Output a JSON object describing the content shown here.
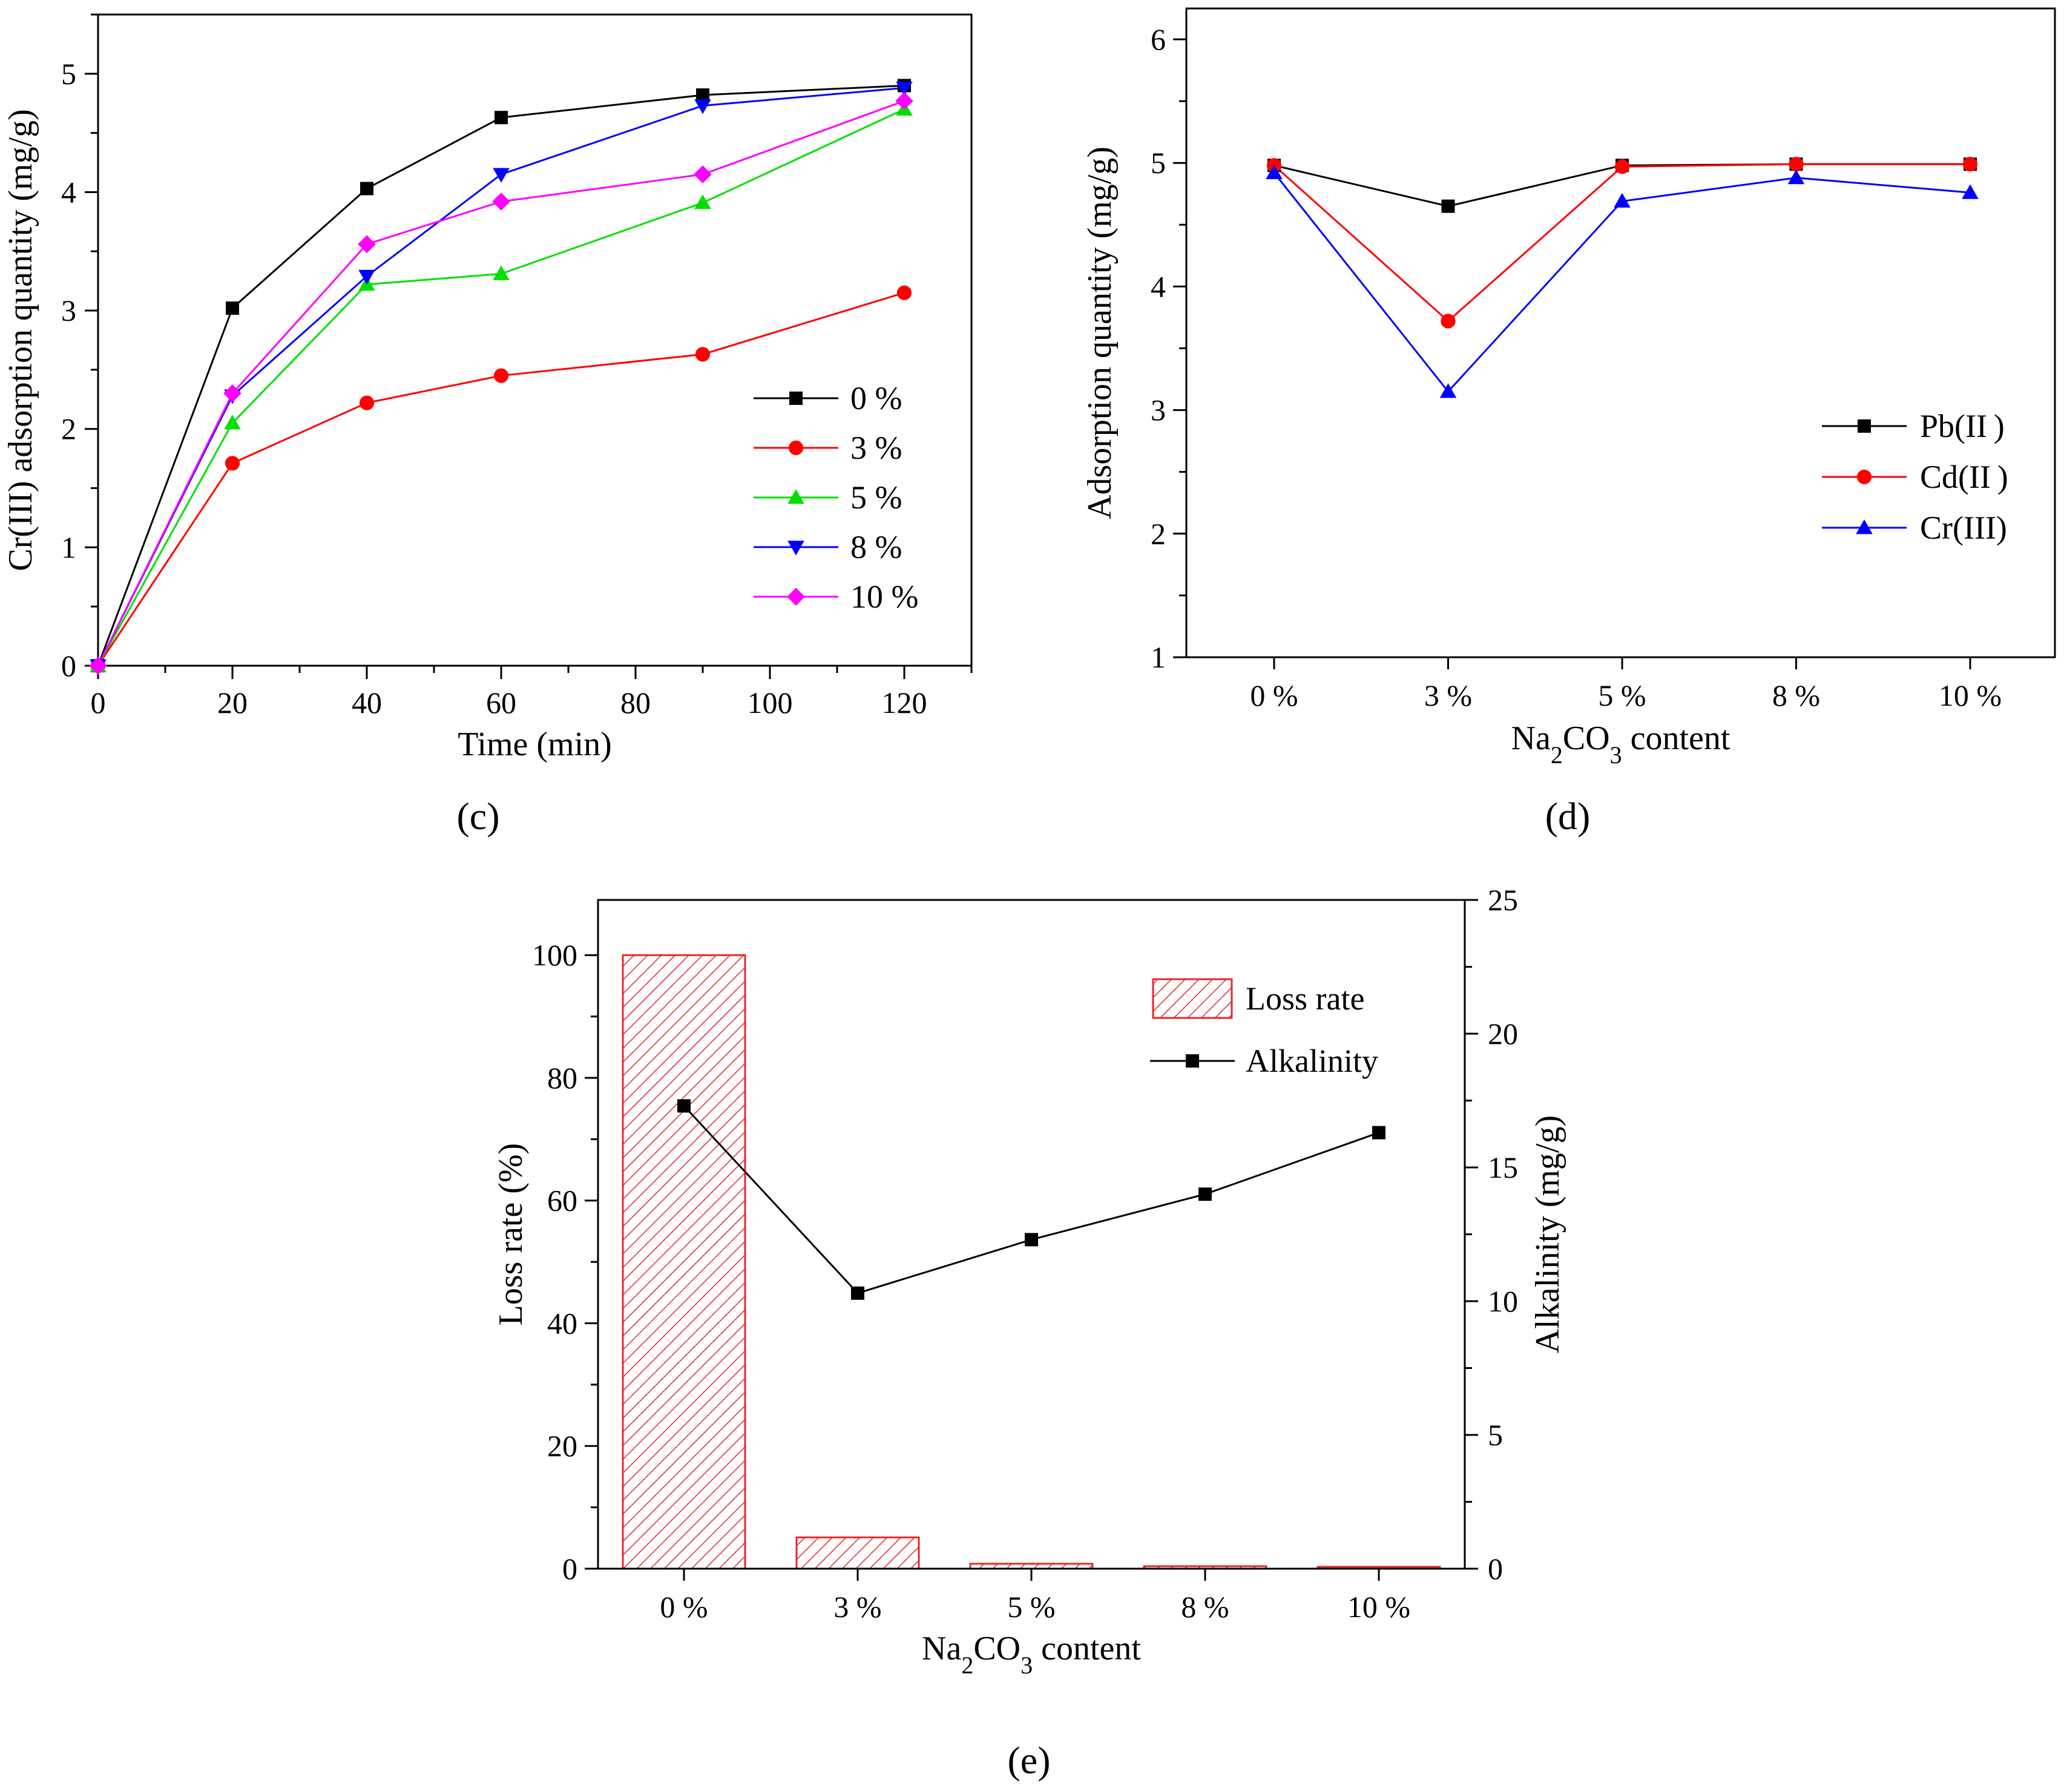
{
  "chart_data": [
    {
      "id": "c",
      "type": "line",
      "panel_label": "c",
      "xlabel": "Time (min)",
      "ylabel": "Cr(III)  adsorption quantity (mg/g)",
      "x": [
        0,
        20,
        40,
        60,
        90,
        120
      ],
      "xlim": [
        0,
        130
      ],
      "ylim": [
        0,
        5.5
      ],
      "xticks": [
        0,
        20,
        40,
        60,
        80,
        100,
        120
      ],
      "yticks": [
        0,
        1,
        2,
        3,
        4,
        5
      ],
      "legend_position": "center-right",
      "series": [
        {
          "name": "0 %",
          "color": "#000000",
          "marker": "square",
          "values": [
            0,
            3.02,
            4.03,
            4.63,
            4.82,
            4.9
          ]
        },
        {
          "name": "3 %",
          "color": "#ff0000",
          "marker": "circle",
          "values": [
            0,
            1.71,
            2.22,
            2.45,
            2.63,
            3.15
          ]
        },
        {
          "name": "5 %",
          "color": "#00e000",
          "marker": "triangle-up",
          "values": [
            0,
            2.05,
            3.22,
            3.31,
            3.91,
            4.7
          ]
        },
        {
          "name": "8 %",
          "color": "#0000ff",
          "marker": "triangle-down",
          "values": [
            0,
            2.28,
            3.29,
            4.15,
            4.73,
            4.88
          ]
        },
        {
          "name": "10 %",
          "color": "#ff00ff",
          "marker": "diamond",
          "values": [
            0,
            2.3,
            3.56,
            3.92,
            4.15,
            4.77
          ]
        }
      ]
    },
    {
      "id": "d",
      "type": "line",
      "panel_label": "d",
      "xlabel_parts": [
        "Na",
        "2",
        "CO",
        "3",
        "  content"
      ],
      "ylabel": "Adsorption quantity (mg/g)",
      "categories": [
        "0 %",
        "3 %",
        "5 %",
        "8 %",
        "10 %"
      ],
      "ylim": [
        1,
        6.25
      ],
      "yticks": [
        1,
        2,
        3,
        4,
        5,
        6
      ],
      "legend_position": "bottom-right",
      "series": [
        {
          "name": "Pb(II )",
          "color": "#000000",
          "marker": "square",
          "values": [
            4.98,
            4.65,
            4.98,
            4.99,
            4.99
          ]
        },
        {
          "name": "Cd(II )",
          "color": "#ff0000",
          "marker": "circle",
          "values": [
            4.98,
            3.72,
            4.97,
            4.99,
            4.99
          ]
        },
        {
          "name": "Cr(III)",
          "color": "#0000ff",
          "marker": "triangle-up",
          "values": [
            4.92,
            3.15,
            4.69,
            4.88,
            4.76
          ]
        }
      ]
    },
    {
      "id": "e",
      "type": "bar+line",
      "panel_label": "e",
      "xlabel_parts": [
        "Na",
        "2",
        "CO",
        "3",
        "  content"
      ],
      "ylabel": "Loss rate (%)",
      "y2label": "Alkalinity  (mg/g)",
      "categories": [
        "0 %",
        "3 %",
        "5 %",
        "8 %",
        "10 %"
      ],
      "ylim": [
        0,
        109
      ],
      "yticks": [
        0,
        20,
        40,
        60,
        80,
        100
      ],
      "y2lim": [
        0,
        25
      ],
      "y2ticks": [
        0,
        5,
        10,
        15,
        20,
        25
      ],
      "legend_position": "top-right",
      "bars": {
        "name": "Loss rate",
        "color": "#e8262a",
        "values": [
          100,
          5.1,
          0.8,
          0.4,
          0.3
        ]
      },
      "line": {
        "name": "Alkalinity",
        "color": "#000000",
        "marker": "square",
        "values": [
          17.3,
          10.3,
          12.3,
          14.0,
          16.3
        ]
      }
    }
  ]
}
